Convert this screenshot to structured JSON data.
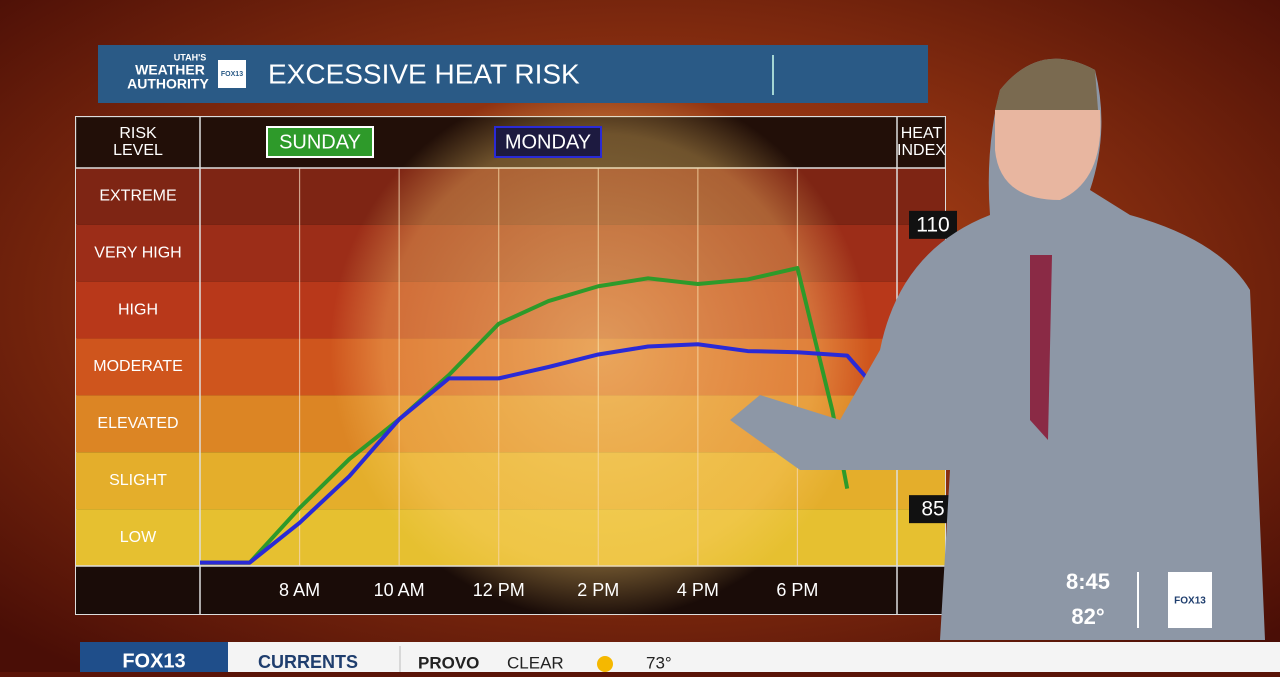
{
  "chart_data": {
    "type": "line",
    "title": "EXCESSIVE HEAT RISK",
    "risk_header": [
      "RISK",
      "LEVEL"
    ],
    "index_header": [
      "HEAT",
      "INDEX"
    ],
    "risk_levels": [
      "EXTREME",
      "VERY HIGH",
      "HIGH",
      "MODERATE",
      "ELEVATED",
      "SLIGHT",
      "LOW"
    ],
    "xlim": [
      6,
      20
    ],
    "xticks": [
      {
        "value": 8,
        "label": "8 AM"
      },
      {
        "value": 10,
        "label": "10 AM"
      },
      {
        "value": 12,
        "label": "12 PM"
      },
      {
        "value": 14,
        "label": "2 PM"
      },
      {
        "value": 16,
        "label": "4 PM"
      },
      {
        "value": 18,
        "label": "6 PM"
      }
    ],
    "ylim": [
      80,
      115
    ],
    "yticks": [
      85,
      110
    ],
    "series": [
      {
        "name": "SUNDAY",
        "color": "#2e9a2a",
        "x": [
          6,
          7,
          8,
          9,
          10,
          11,
          12,
          13,
          14,
          15,
          16,
          17,
          18,
          18.7,
          19
        ],
        "values": [
          80.3,
          80.3,
          85.1,
          89.4,
          92.9,
          96.8,
          101.3,
          103.3,
          104.6,
          105.3,
          104.8,
          105.2,
          106.2,
          93.7,
          86.8
        ]
      },
      {
        "name": "MONDAY",
        "color": "#2a2ad6",
        "x": [
          6,
          7,
          8,
          9,
          10,
          11,
          12,
          13,
          14,
          15,
          16,
          17,
          18,
          19,
          19.6
        ],
        "values": [
          80.3,
          80.3,
          83.8,
          87.9,
          92.9,
          96.5,
          96.5,
          97.5,
          98.6,
          99.3,
          99.5,
          98.9,
          98.8,
          98.5,
          95.5
        ]
      }
    ]
  },
  "logo": {
    "top": "UTAH'S",
    "line1": "WEATHER",
    "line2": "AUTHORITY",
    "badge": "FOX13"
  },
  "clock": {
    "time": "8:45",
    "temp": "82°",
    "badge": "FOX13"
  },
  "ticker": {
    "brand": "FOX13",
    "section": "CURRENTS",
    "city": "PROVO",
    "condition": "CLEAR",
    "temp": "73°"
  }
}
